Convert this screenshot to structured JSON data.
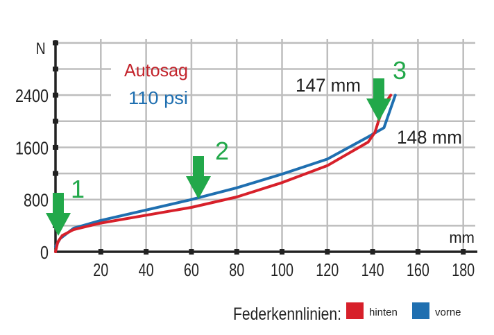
{
  "chart_data": {
    "type": "line",
    "title": "",
    "xlabel": "mm",
    "ylabel": "N",
    "xlim": [
      0,
      180
    ],
    "ylim": [
      0,
      3200
    ],
    "x_ticks": [
      "20",
      "40",
      "60",
      "80",
      "100",
      "120",
      "140",
      "160",
      "180"
    ],
    "y_ticks": [
      "0",
      "800",
      "1600",
      "2400"
    ],
    "grid": true,
    "legend_position": "bottom-right",
    "legend_title": "Federkennlinien:",
    "series": [
      {
        "name": "hinten",
        "color": "#d7202a",
        "points": [
          [
            0,
            0
          ],
          [
            1,
            150
          ],
          [
            3,
            250
          ],
          [
            8,
            340
          ],
          [
            20,
            440
          ],
          [
            40,
            560
          ],
          [
            60,
            680
          ],
          [
            80,
            840
          ],
          [
            100,
            1060
          ],
          [
            120,
            1320
          ],
          [
            138,
            1680
          ],
          [
            141,
            1830
          ],
          [
            143,
            2050
          ],
          [
            146,
            2300
          ],
          [
            148,
            2400
          ]
        ]
      },
      {
        "name": "vorne",
        "color": "#1f6fb0",
        "points": [
          [
            0,
            80
          ],
          [
            2,
            200
          ],
          [
            8,
            360
          ],
          [
            20,
            480
          ],
          [
            40,
            640
          ],
          [
            60,
            800
          ],
          [
            80,
            980
          ],
          [
            100,
            1190
          ],
          [
            120,
            1420
          ],
          [
            138,
            1760
          ],
          [
            145,
            1900
          ],
          [
            148,
            2200
          ],
          [
            150,
            2400
          ]
        ]
      }
    ],
    "annotations": [
      {
        "label": "1",
        "x": 2,
        "y": 350
      },
      {
        "label": "2",
        "x": 63,
        "y": 800
      },
      {
        "label": "3",
        "x": 144,
        "y": 2000
      },
      {
        "text": "147 mm",
        "x": 110,
        "y": 2600
      },
      {
        "text": "148 mm",
        "x": 152,
        "y": 1800
      }
    ],
    "inset_text": [
      "Autosag",
      "110 psi"
    ]
  },
  "labels": {
    "y_unit": "N",
    "x_unit": "mm",
    "autosag": "Autosag",
    "psi": "110 psi",
    "note_147": "147 mm",
    "note_148": "148 mm",
    "marker1": "1",
    "marker2": "2",
    "marker3": "3",
    "legend_title": "Federkennlinien:",
    "legend_hinten": "hinten",
    "legend_vorne": "vorne"
  },
  "colors": {
    "red": "#d7202a",
    "blue": "#1f6fb0",
    "green": "#22a84a",
    "grid": "#bdbdbd",
    "axis": "#222222"
  }
}
